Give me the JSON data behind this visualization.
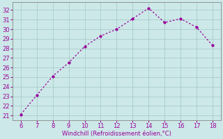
{
  "x": [
    6,
    7,
    8,
    9,
    10,
    11,
    12,
    13,
    14,
    15,
    16,
    17,
    18
  ],
  "y": [
    21.1,
    23.1,
    25.1,
    26.5,
    28.2,
    29.3,
    30.0,
    31.1,
    32.2,
    30.7,
    31.1,
    30.2,
    28.3
  ],
  "line_color": "#990099",
  "marker_color": "#990099",
  "background_color": "#cce8e8",
  "grid_color": "#aacccc",
  "xlabel": "Windchill (Refroidissement éolien,°C)",
  "xlabel_color": "#990099",
  "tick_color": "#990099",
  "xlim": [
    5.5,
    18.5
  ],
  "ylim": [
    20.5,
    32.8
  ],
  "xticks": [
    6,
    7,
    8,
    9,
    10,
    11,
    12,
    13,
    14,
    15,
    16,
    17,
    18
  ],
  "yticks": [
    21,
    22,
    23,
    24,
    25,
    26,
    27,
    28,
    29,
    30,
    31,
    32
  ],
  "border_color": "#888888",
  "label_fontsize": 6.0,
  "tick_fontsize": 6.0
}
